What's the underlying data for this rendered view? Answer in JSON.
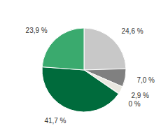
{
  "chart_data": {
    "type": "pie",
    "values": [
      24.6,
      7.0,
      2.9,
      0.2,
      41.7,
      23.9
    ],
    "value_labels": [
      "24,6 %",
      "7,0 %",
      "2,9 %",
      "0 %",
      "41,7 %",
      "23,9 %"
    ],
    "colors": [
      "#c8c8c8",
      "#808080",
      "#eae8e0",
      "#c8c4be",
      "#006b3c",
      "#3aaa6e"
    ],
    "data_labels": true
  }
}
